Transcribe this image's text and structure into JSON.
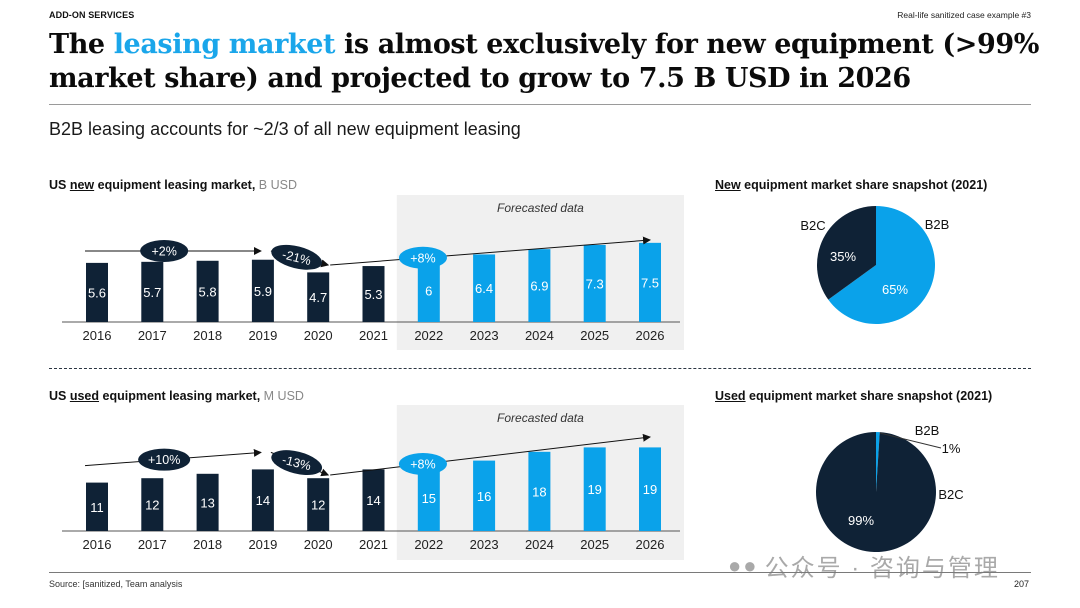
{
  "header": {
    "section_label": "ADD-ON SERVICES",
    "case_label": "Real-life sanitized case example #3",
    "title_pre": "The ",
    "title_highlight": "leasing market",
    "title_post": " is almost exclusively for new equipment (>99% market share) and projected to grow to 7.5 B USD in 2026",
    "subtitle": "B2B leasing accounts for ~2/3 of all new equipment leasing"
  },
  "colors": {
    "actual": "#0f2236",
    "forecast": "#0aa2ea",
    "highlight_text": "#1aa6ea",
    "forecast_bg": "#f0f0f0"
  },
  "footer": {
    "source": "Source: [sanitized, Team analysis",
    "page_number": "207",
    "watermark": "公众号 · 咨询与管理"
  },
  "chart_data": [
    {
      "type": "bar",
      "id": "new-equipment-bar",
      "title_pre": "US ",
      "title_underlined": "new",
      "title_post": " equipment leasing market,",
      "unit": " B USD",
      "categories": [
        "2016",
        "2017",
        "2018",
        "2019",
        "2020",
        "2021",
        "2022",
        "2023",
        "2024",
        "2025",
        "2026"
      ],
      "values": [
        5.6,
        5.7,
        5.8,
        5.9,
        4.7,
        5.3,
        6,
        6.4,
        6.9,
        7.3,
        7.5
      ],
      "value_labels": [
        "5.6",
        "5.7",
        "5.8",
        "5.9",
        "4.7",
        "5.3",
        "6",
        "6.4",
        "6.9",
        "7.3",
        "7.5"
      ],
      "forecast_start_index": 6,
      "forecast_label": "Forecasted data",
      "growth_annotations": [
        {
          "label": "+2%",
          "from": "2016",
          "to": "2019",
          "style": "actual"
        },
        {
          "label": "-21%",
          "from": "2019",
          "to": "2020",
          "style": "actual"
        },
        {
          "label": "+8%",
          "from": "2020",
          "to": "2026",
          "style": "forecast"
        }
      ],
      "ylim": [
        0,
        9
      ]
    },
    {
      "type": "bar",
      "id": "used-equipment-bar",
      "title_pre": "US ",
      "title_underlined": "used",
      "title_post": " equipment leasing market,",
      "unit": " M USD",
      "categories": [
        "2016",
        "2017",
        "2018",
        "2019",
        "2020",
        "2021",
        "2022",
        "2023",
        "2024",
        "2025",
        "2026"
      ],
      "values": [
        11,
        12,
        13,
        14,
        12,
        14,
        15,
        16,
        18,
        19,
        19
      ],
      "value_labels": [
        "11",
        "12",
        "13",
        "14",
        "12",
        "14",
        "15",
        "16",
        "18",
        "19",
        "19"
      ],
      "forecast_start_index": 6,
      "forecast_label": "Forecasted data",
      "growth_annotations": [
        {
          "label": "+10%",
          "from": "2016",
          "to": "2019",
          "style": "actual"
        },
        {
          "label": "-13%",
          "from": "2019",
          "to": "2020",
          "style": "actual"
        },
        {
          "label": "+8%",
          "from": "2020",
          "to": "2026",
          "style": "forecast"
        }
      ],
      "ylim": [
        0,
        25
      ]
    },
    {
      "type": "pie",
      "id": "new-equipment-pie",
      "title_underlined": "New",
      "title_post": " equipment market share snapshot (2021)",
      "slices": [
        {
          "label": "B2B",
          "value": 65,
          "value_label": "65%",
          "color": "#0aa2ea"
        },
        {
          "label": "B2C",
          "value": 35,
          "value_label": "35%",
          "color": "#0f2236"
        }
      ]
    },
    {
      "type": "pie",
      "id": "used-equipment-pie",
      "title_underlined": "Used",
      "title_post": " equipment market share snapshot (2021)",
      "slices": [
        {
          "label": "B2B",
          "value": 1,
          "value_label": "1%",
          "color": "#0aa2ea"
        },
        {
          "label": "B2C",
          "value": 99,
          "value_label": "99%",
          "color": "#0f2236"
        }
      ]
    }
  ]
}
